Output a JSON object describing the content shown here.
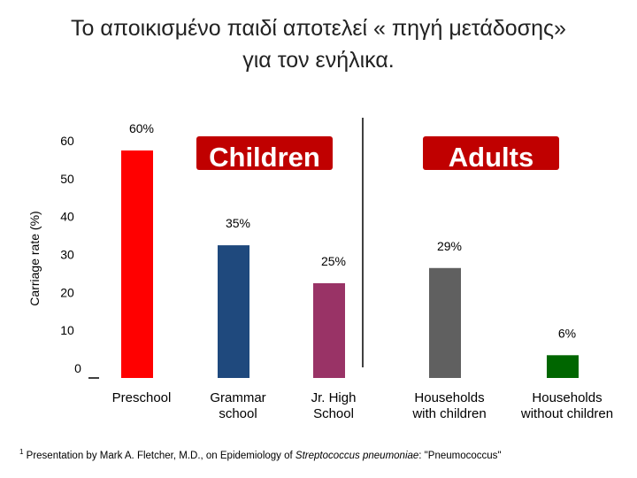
{
  "title_line1": "Το αποικισμένο παιδί αποτελεί « πηγή μετάδοσης»",
  "title_line2": "για τον ενήλικα.",
  "banners": {
    "left": "Children",
    "right": "Adults"
  },
  "footnote": {
    "marker": "1",
    "prefix": "Presentation by Mark A. Fletcher, M.D., on Epidemiology of ",
    "italic": "Streptococcus pneumoniae",
    "suffix": ": \"Pneumococcus\""
  },
  "colors": {
    "preschool": "#ff0000",
    "grammar": "#1f497d",
    "jrhigh": "#993366",
    "households_children": "#606060",
    "households_without": "#006600",
    "banner_bg": "#c00000",
    "banner_text": "#ffffff"
  },
  "chart_data": {
    "type": "bar",
    "title": "Το αποικισμένο παιδί αποτελεί « πηγή μετάδοσης» για τον ενήλικα.",
    "xlabel": "",
    "ylabel": "Carriage rate (%)",
    "ylim": [
      0,
      60
    ],
    "yticks": [
      0,
      10,
      20,
      30,
      40,
      50,
      60
    ],
    "grid": false,
    "groups": [
      {
        "name": "Children",
        "categories": [
          "Preschool",
          "Grammar school",
          "Jr. High School"
        ]
      },
      {
        "name": "Adults",
        "categories": [
          "Households with children",
          "Households without children"
        ]
      }
    ],
    "categories": [
      [
        "Preschool"
      ],
      [
        "Grammar",
        "school"
      ],
      [
        "Jr. High",
        "School"
      ],
      [
        "Households",
        "with children"
      ],
      [
        "Households",
        "without children"
      ]
    ],
    "values": [
      60,
      35,
      25,
      29,
      6
    ],
    "data_labels": [
      "60%",
      "35%",
      "25%",
      "29%",
      "6%"
    ]
  }
}
